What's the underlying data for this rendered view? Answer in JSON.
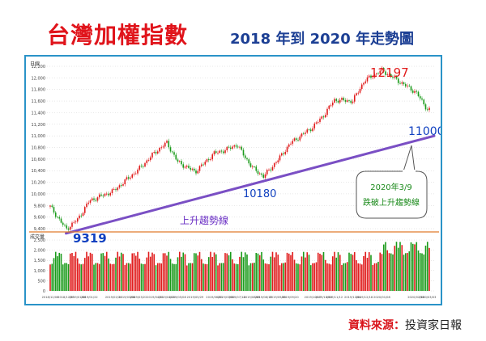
{
  "header": {
    "title": "台灣加權指數",
    "subtitle": "2018 年到 2020 年走勢圖",
    "source_label": "資料來源：",
    "source_value": "投資家日報"
  },
  "panel": {
    "period_label": "日線",
    "volume_label": "成交量"
  },
  "annotations": {
    "peak": "12197",
    "low": "9319",
    "mid": "10180",
    "break": "11000",
    "trend": "上升趨勢線",
    "callout_date": "2020年3/9",
    "callout_text": "跌破上升趨勢線"
  },
  "colors": {
    "up": "#e01b1b",
    "down": "#1a9a1a",
    "trendline": "#7a4fc4",
    "label_red": "#e01b1b",
    "label_blue": "#1040c0",
    "label_purple": "#6a2fc4",
    "callout_text": "#1a8a1a",
    "frame": "#2a93c8",
    "divider": "#e07a2a",
    "grid": "#d0d0d0"
  },
  "chart_data": {
    "type": "candlestick",
    "price_axis": {
      "ylim": [
        9400,
        12200
      ],
      "ticks": [
        9400,
        9600,
        9800,
        10000,
        10200,
        10400,
        10600,
        10800,
        11000,
        11200,
        11400,
        11600,
        11800,
        12000,
        12200
      ],
      "tick_labels": [
        "9,400",
        "9,600",
        "9,800",
        "10,000",
        "10,200",
        "10,400",
        "10,600",
        "10,800",
        "11,000",
        "11,200",
        "11,400",
        "11,600",
        "11,800",
        "12,000",
        "12,200"
      ]
    },
    "volume_axis": {
      "ylim": [
        0,
        2700
      ],
      "ticks": [
        0,
        500,
        1000,
        1500,
        2000,
        2500
      ],
      "tick_labels": [
        "0",
        "500",
        "1,000",
        "1,500",
        "2,000",
        "2,500"
      ]
    },
    "date_labels": [
      "2018/12/06",
      "2018/12/25",
      "2019/01/08",
      "2019/01/22",
      "2019/02/20",
      "2019/03/08",
      "2019/03/22",
      "2019/04/11",
      "2019/04/25",
      "2019/05/08",
      "2019/05/29",
      "2019/06/21",
      "2019/07/05",
      "2019/07/18",
      "2019/08/05",
      "2019/08/19",
      "2019/09/05",
      "2019/09/20",
      "2019/10/17",
      "2019/10/30",
      "2019/11/12",
      "2019/12/04",
      "2019/12/18",
      "2020/01/08",
      "2020/02/18",
      "2020/03/03"
    ],
    "price_path": [
      {
        "date": "2018/12/06",
        "close": 9780
      },
      {
        "date": "2018/12/25",
        "close": 9390
      },
      {
        "date": "2019/01/08",
        "close": 9560
      },
      {
        "date": "2019/01/22",
        "close": 9880
      },
      {
        "date": "2019/02/20",
        "close": 10050
      },
      {
        "date": "2019/03/08",
        "close": 10250
      },
      {
        "date": "2019/03/22",
        "close": 10420
      },
      {
        "date": "2019/04/11",
        "close": 10720
      },
      {
        "date": "2019/04/25",
        "close": 10880
      },
      {
        "date": "2019/05/08",
        "close": 10550
      },
      {
        "date": "2019/05/29",
        "close": 10380
      },
      {
        "date": "2019/06/21",
        "close": 10700
      },
      {
        "date": "2019/07/05",
        "close": 10760
      },
      {
        "date": "2019/07/18",
        "close": 10850
      },
      {
        "date": "2019/08/05",
        "close": 10460
      },
      {
        "date": "2019/08/19",
        "close": 10300
      },
      {
        "date": "2019/09/05",
        "close": 10580
      },
      {
        "date": "2019/09/20",
        "close": 10870
      },
      {
        "date": "2019/10/17",
        "close": 11150
      },
      {
        "date": "2019/10/30",
        "close": 11350
      },
      {
        "date": "2019/11/12",
        "close": 11620
      },
      {
        "date": "2019/12/04",
        "close": 11600
      },
      {
        "date": "2019/12/18",
        "close": 11950
      },
      {
        "date": "2020/01/08",
        "close": 12130
      },
      {
        "date": "2020/02/18",
        "close": 11750
      },
      {
        "date": "2020/03/03",
        "close": 11450
      }
    ],
    "trendline": [
      {
        "date": "2018/12/25",
        "value": 9319
      },
      {
        "date": "2020/03/09",
        "value": 11000
      }
    ],
    "grid": true,
    "legend": false
  }
}
